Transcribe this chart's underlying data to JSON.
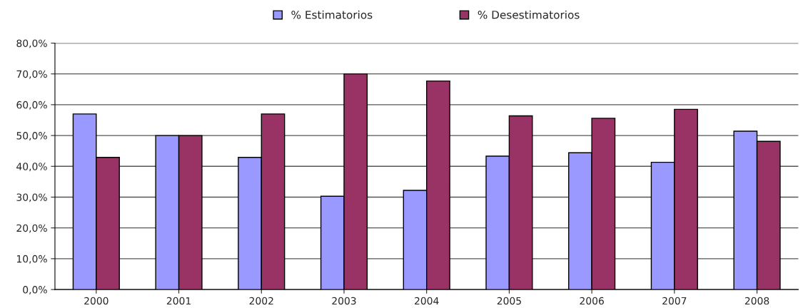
{
  "chart_data": {
    "type": "bar",
    "categories": [
      "2000",
      "2001",
      "2002",
      "2003",
      "2004",
      "2005",
      "2006",
      "2007",
      "2008"
    ],
    "series": [
      {
        "name": "% Estimatorios",
        "color": "#9999ff",
        "values": [
          57.0,
          50.0,
          42.9,
          30.3,
          32.2,
          43.3,
          44.4,
          41.3,
          51.4
        ]
      },
      {
        "name": "% Desestimatorios",
        "color": "#993366",
        "values": [
          42.9,
          50.0,
          57.0,
          70.0,
          67.7,
          56.4,
          55.6,
          58.5,
          48.1
        ]
      }
    ],
    "ylim": [
      0,
      80
    ],
    "yticks": [
      {
        "value": 0,
        "label": "0,0%"
      },
      {
        "value": 10,
        "label": "10,0%"
      },
      {
        "value": 20,
        "label": "20,0%"
      },
      {
        "value": 30,
        "label": "30,0%"
      },
      {
        "value": 40,
        "label": "40,0%"
      },
      {
        "value": 50,
        "label": "50,0%"
      },
      {
        "value": 60,
        "label": "60,0%"
      },
      {
        "value": 70,
        "label": "70,0%"
      },
      {
        "value": 80,
        "label": "80,0%"
      }
    ],
    "grid": "y",
    "legend": "top"
  }
}
